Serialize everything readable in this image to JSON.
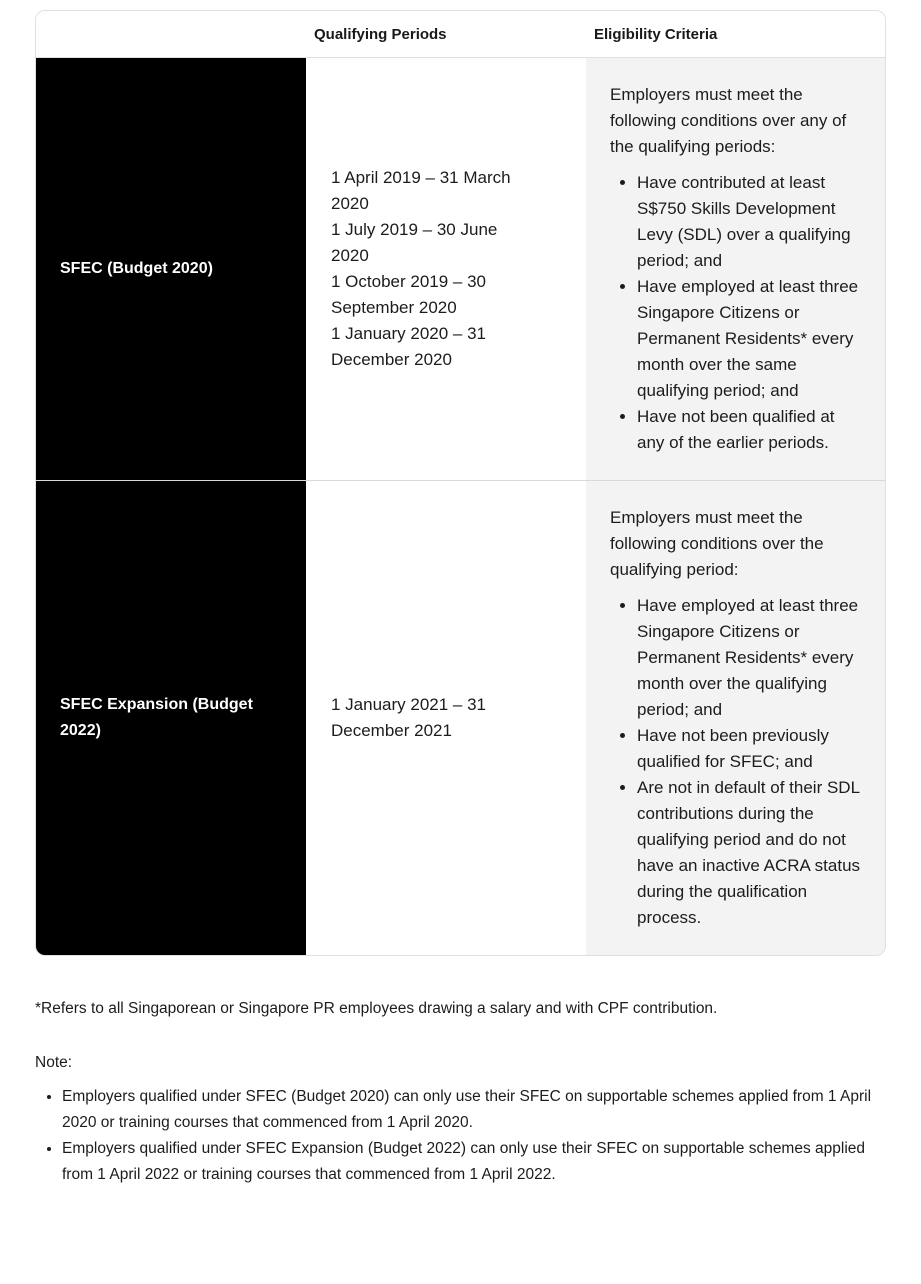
{
  "colors": {
    "scheme_cell_bg": "#000000",
    "scheme_cell_text": "#ffffff",
    "criteria_cell_bg": "#f3f3f3",
    "table_border": "#e0e0e0",
    "body_text": "#1c1c1c"
  },
  "table": {
    "headers": {
      "scheme": "",
      "qualifying_periods": "Qualifying Periods",
      "eligibility_criteria": "Eligibility Criteria"
    },
    "rows": [
      {
        "scheme": "SFEC (Budget 2020)",
        "periods": [
          "1 April 2019 – 31 March 2020",
          "1 July 2019 – 30 June 2020",
          "1 October 2019 – 30 September 2020",
          "1 January 2020 – 31 December 2020"
        ],
        "criteria_intro": "Employers must meet the following conditions over any of the qualifying periods:",
        "criteria_items": [
          "Have contributed at least S$750 Skills Development Levy (SDL) over a qualifying period; and",
          "Have employed at least three Singapore Citizens or Permanent Residents* every month over the same qualifying period; and",
          "Have not been qualified at any of the earlier periods."
        ]
      },
      {
        "scheme": "SFEC Expansion (Budget 2022)",
        "periods": [
          "1 January 2021 – 31 December 2021"
        ],
        "criteria_intro": "Employers must meet the following conditions over the qualifying period:",
        "criteria_items": [
          "Have employed at least three Singapore Citizens or Permanent Residents* every month over the qualifying period; and",
          "Have not been previously qualified for SFEC; and",
          "Are not in default of their SDL contributions during the qualifying period and do not have an inactive ACRA status during the qualification process."
        ]
      }
    ]
  },
  "footnote": "*Refers to all Singaporean or Singapore PR employees drawing a salary and with CPF contribution.",
  "note": {
    "label": "Note:",
    "items": [
      "Employers qualified under SFEC (Budget 2020) can only use their SFEC on supportable schemes applied from 1 April 2020 or training courses that commenced from 1 April 2020.",
      "Employers qualified under SFEC Expansion (Budget 2022) can only use their SFEC on supportable schemes applied from 1 April 2022 or training courses that commenced from 1 April 2022."
    ]
  }
}
